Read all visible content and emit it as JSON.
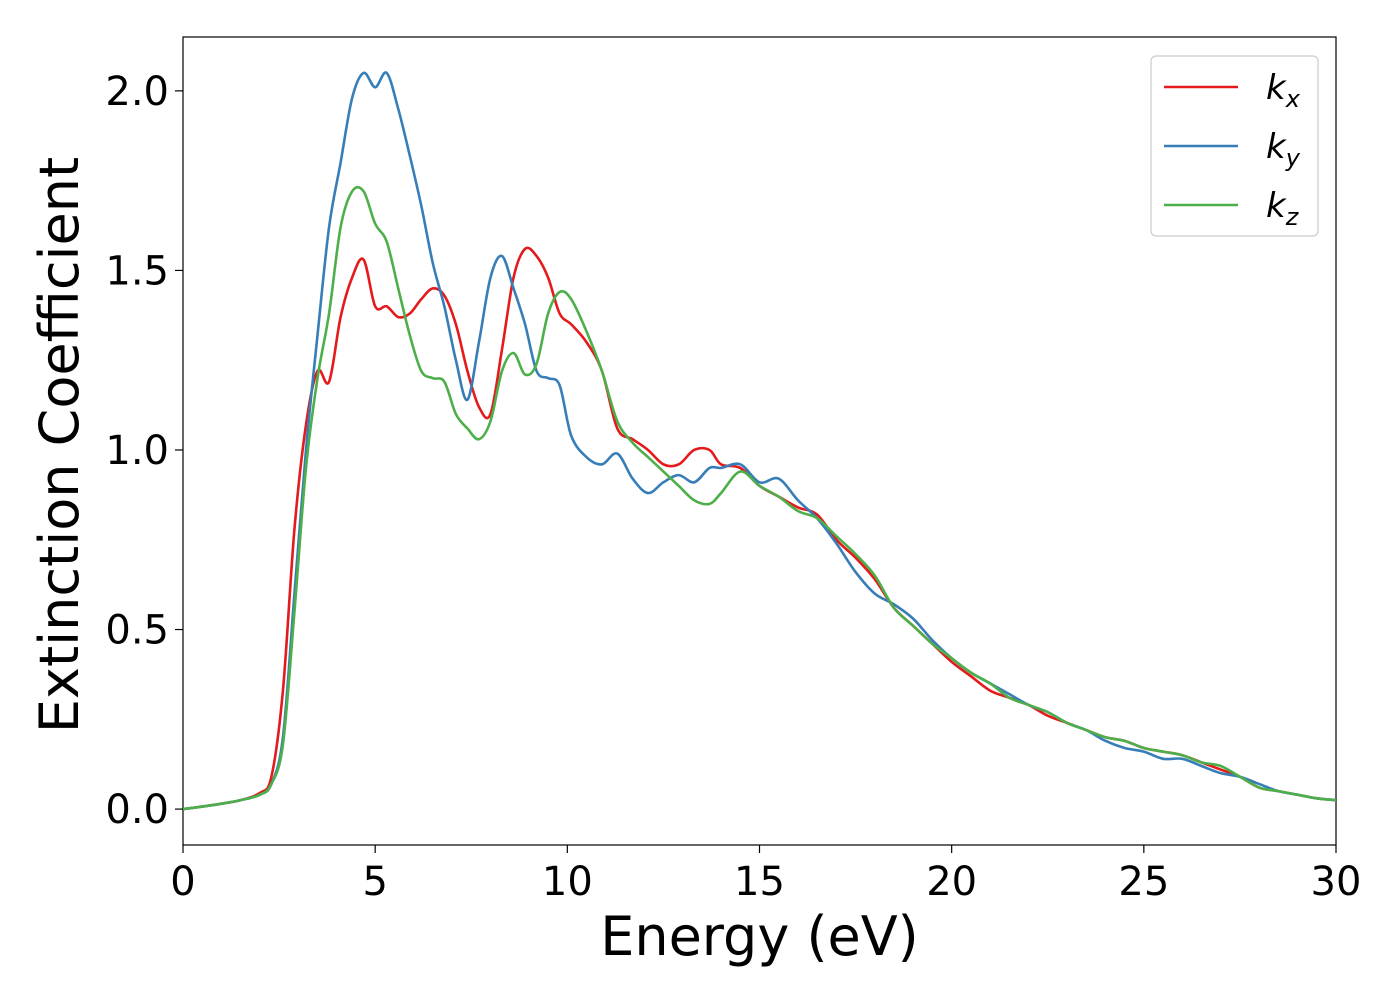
{
  "chart_data": {
    "type": "line",
    "title": "",
    "xlabel": "Energy (eV)",
    "ylabel": "Extinction Coefficient",
    "xlim": [
      0,
      30
    ],
    "ylim": [
      -0.1,
      2.15
    ],
    "xticks": [
      0,
      5,
      10,
      15,
      20,
      25,
      30
    ],
    "yticks": [
      0.0,
      0.5,
      1.0,
      1.5,
      2.0
    ],
    "xtick_labels": [
      "0",
      "5",
      "10",
      "15",
      "20",
      "25",
      "30"
    ],
    "ytick_labels": [
      "0.0",
      "0.5",
      "1.0",
      "1.5",
      "2.0"
    ],
    "grid": false,
    "legend_position": "top-right",
    "series": [
      {
        "name": "k",
        "subscript": "x",
        "color": "#e41a1c",
        "x": [
          0,
          0.5,
          1,
          1.5,
          2,
          2.3,
          2.6,
          2.9,
          3.2,
          3.5,
          3.8,
          4.1,
          4.4,
          4.7,
          5.0,
          5.3,
          5.6,
          5.9,
          6.2,
          6.5,
          6.8,
          7.1,
          7.4,
          7.7,
          8.0,
          8.3,
          8.6,
          8.9,
          9.2,
          9.5,
          9.8,
          10.1,
          10.5,
          10.9,
          11.3,
          11.7,
          12.1,
          12.5,
          12.9,
          13.3,
          13.7,
          14.0,
          14.5,
          15.0,
          15.5,
          16.0,
          16.5,
          17.0,
          17.5,
          18.0,
          18.5,
          19.0,
          19.5,
          20.0,
          20.5,
          21.0,
          21.5,
          22.0,
          22.5,
          23.0,
          23.5,
          24.0,
          24.5,
          25.0,
          25.5,
          26.0,
          26.5,
          27.0,
          27.5,
          28.0,
          28.5,
          29.0,
          29.5,
          30.0
        ],
        "y": [
          0.0,
          0.007,
          0.015,
          0.025,
          0.045,
          0.09,
          0.33,
          0.78,
          1.07,
          1.22,
          1.19,
          1.37,
          1.48,
          1.53,
          1.4,
          1.4,
          1.37,
          1.38,
          1.42,
          1.45,
          1.43,
          1.35,
          1.22,
          1.12,
          1.1,
          1.28,
          1.48,
          1.56,
          1.54,
          1.48,
          1.38,
          1.35,
          1.3,
          1.22,
          1.06,
          1.03,
          1.0,
          0.96,
          0.96,
          1.0,
          1.0,
          0.96,
          0.95,
          0.9,
          0.87,
          0.84,
          0.82,
          0.75,
          0.7,
          0.64,
          0.56,
          0.51,
          0.46,
          0.41,
          0.37,
          0.33,
          0.31,
          0.29,
          0.26,
          0.24,
          0.22,
          0.2,
          0.19,
          0.17,
          0.16,
          0.15,
          0.13,
          0.11,
          0.09,
          0.06,
          0.05,
          0.04,
          0.03,
          0.025
        ]
      },
      {
        "name": "k",
        "subscript": "y",
        "color": "#377eb8",
        "x": [
          0,
          0.5,
          1,
          1.5,
          2,
          2.3,
          2.6,
          2.9,
          3.2,
          3.5,
          3.8,
          4.1,
          4.4,
          4.7,
          5.0,
          5.3,
          5.6,
          5.9,
          6.2,
          6.5,
          6.8,
          7.1,
          7.4,
          7.7,
          8.0,
          8.3,
          8.6,
          8.9,
          9.2,
          9.5,
          9.8,
          10.1,
          10.5,
          10.9,
          11.3,
          11.7,
          12.1,
          12.5,
          12.9,
          13.3,
          13.7,
          14.0,
          14.5,
          15.0,
          15.5,
          16.0,
          16.5,
          17.0,
          17.5,
          18.0,
          18.5,
          19.0,
          19.5,
          20.0,
          20.5,
          21.0,
          21.5,
          22.0,
          22.5,
          23.0,
          23.5,
          24.0,
          24.5,
          25.0,
          25.5,
          26.0,
          26.5,
          27.0,
          27.5,
          28.0,
          28.5,
          29.0,
          29.5,
          30.0
        ],
        "y": [
          0.0,
          0.007,
          0.015,
          0.025,
          0.04,
          0.07,
          0.2,
          0.6,
          1.0,
          1.32,
          1.62,
          1.8,
          1.98,
          2.05,
          2.01,
          2.05,
          1.95,
          1.82,
          1.68,
          1.52,
          1.4,
          1.25,
          1.14,
          1.3,
          1.48,
          1.54,
          1.45,
          1.35,
          1.22,
          1.2,
          1.18,
          1.04,
          0.98,
          0.96,
          0.99,
          0.92,
          0.88,
          0.91,
          0.93,
          0.91,
          0.95,
          0.95,
          0.96,
          0.91,
          0.92,
          0.86,
          0.81,
          0.74,
          0.66,
          0.6,
          0.57,
          0.53,
          0.47,
          0.42,
          0.38,
          0.35,
          0.32,
          0.29,
          0.27,
          0.24,
          0.22,
          0.19,
          0.17,
          0.16,
          0.14,
          0.14,
          0.12,
          0.1,
          0.09,
          0.07,
          0.05,
          0.04,
          0.03,
          0.025
        ]
      },
      {
        "name": "k",
        "subscript": "z",
        "color": "#4daf4a",
        "x": [
          0,
          0.5,
          1,
          1.5,
          2,
          2.3,
          2.6,
          2.9,
          3.2,
          3.5,
          3.8,
          4.1,
          4.4,
          4.7,
          5.0,
          5.3,
          5.6,
          5.9,
          6.2,
          6.5,
          6.8,
          7.1,
          7.4,
          7.7,
          8.0,
          8.3,
          8.6,
          8.9,
          9.2,
          9.5,
          9.8,
          10.1,
          10.5,
          10.9,
          11.3,
          11.7,
          12.1,
          12.5,
          12.9,
          13.3,
          13.7,
          14.0,
          14.5,
          15.0,
          15.5,
          16.0,
          16.5,
          17.0,
          17.5,
          18.0,
          18.5,
          19.0,
          19.5,
          20.0,
          20.5,
          21.0,
          21.5,
          22.0,
          22.5,
          23.0,
          23.5,
          24.0,
          24.5,
          25.0,
          25.5,
          26.0,
          26.5,
          27.0,
          27.5,
          28.0,
          28.5,
          29.0,
          29.5,
          30.0
        ],
        "y": [
          0.0,
          0.007,
          0.015,
          0.025,
          0.04,
          0.07,
          0.18,
          0.55,
          0.95,
          1.2,
          1.38,
          1.62,
          1.72,
          1.72,
          1.63,
          1.58,
          1.45,
          1.32,
          1.22,
          1.2,
          1.19,
          1.1,
          1.06,
          1.03,
          1.08,
          1.22,
          1.27,
          1.21,
          1.24,
          1.38,
          1.44,
          1.42,
          1.33,
          1.22,
          1.08,
          1.02,
          0.98,
          0.94,
          0.9,
          0.86,
          0.85,
          0.88,
          0.94,
          0.9,
          0.87,
          0.83,
          0.81,
          0.76,
          0.71,
          0.65,
          0.56,
          0.51,
          0.46,
          0.42,
          0.38,
          0.35,
          0.31,
          0.29,
          0.27,
          0.24,
          0.22,
          0.2,
          0.19,
          0.17,
          0.16,
          0.15,
          0.13,
          0.12,
          0.09,
          0.06,
          0.05,
          0.04,
          0.03,
          0.025
        ]
      }
    ]
  }
}
